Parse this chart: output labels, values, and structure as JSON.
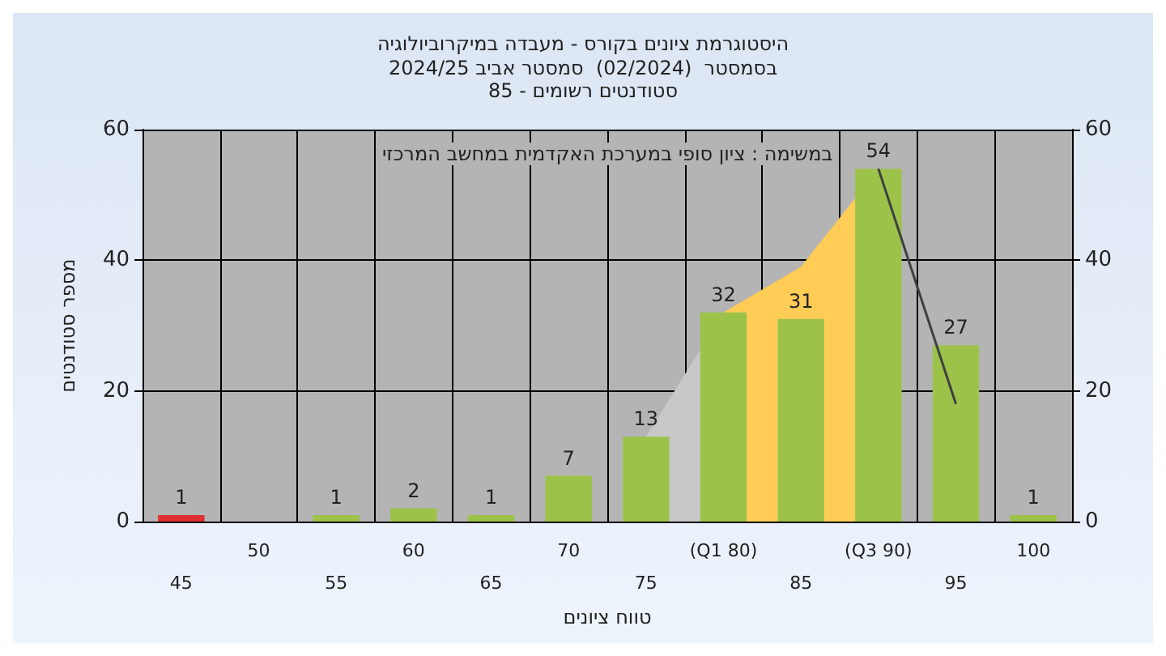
{
  "chart_data": {
    "type": "bar",
    "title": "היסטוגרמת ציונים בקורס - מעבדה במיקרוביולוגיה",
    "subtitle": "בסמסטר  (02/2024)  סמסטר אביב 2024/25\nסטודנטים רשומים - 85",
    "xlabel": "טווח ציונים",
    "ylabel": "מספר סטודנטים",
    "annotations": [
      "במשימה : ציון סופי במערכת האקדמית במחשב המרכזי"
    ],
    "categories": [
      "45",
      "50",
      "55",
      "60",
      "65",
      "70",
      "75",
      "(Q1 80)",
      "85",
      "(Q3 90)",
      "95",
      "100"
    ],
    "series": [
      {
        "type": "area",
        "color": "#c8c8c8",
        "values": [
          null,
          null,
          null,
          null,
          null,
          null,
          13,
          32,
          null,
          null,
          null,
          null
        ]
      },
      {
        "type": "area",
        "color": "#ffcc55",
        "values": [
          null,
          null,
          null,
          null,
          null,
          null,
          null,
          32,
          39,
          54,
          null,
          null
        ]
      },
      {
        "type": "line",
        "color": "#404040",
        "values": [
          null,
          null,
          null,
          null,
          null,
          null,
          null,
          null,
          null,
          54,
          18,
          null
        ]
      },
      {
        "colors": [
          "#e03030",
          "#9cc24a",
          "#9cc24a",
          "#9cc24a",
          "#9cc24a",
          "#9cc24a",
          "#9cc24a",
          "#9cc24a",
          "#9cc24a",
          "#9cc24a",
          "#9cc24a",
          "#9cc24a"
        ],
        "values": [
          1,
          0,
          1,
          2,
          1,
          7,
          13,
          32,
          31,
          54,
          27,
          1
        ],
        "value_labels": [
          "1",
          null,
          "1",
          "2",
          "1",
          "7",
          "13",
          "32",
          "31",
          "54",
          "27",
          "1"
        ]
      }
    ],
    "ylim": [
      0,
      60
    ],
    "yticks": [
      0,
      20,
      40,
      60
    ],
    "y2lim": [
      0,
      60
    ],
    "y2ticks": [
      0,
      20,
      40,
      60
    ],
    "grid": true
  }
}
